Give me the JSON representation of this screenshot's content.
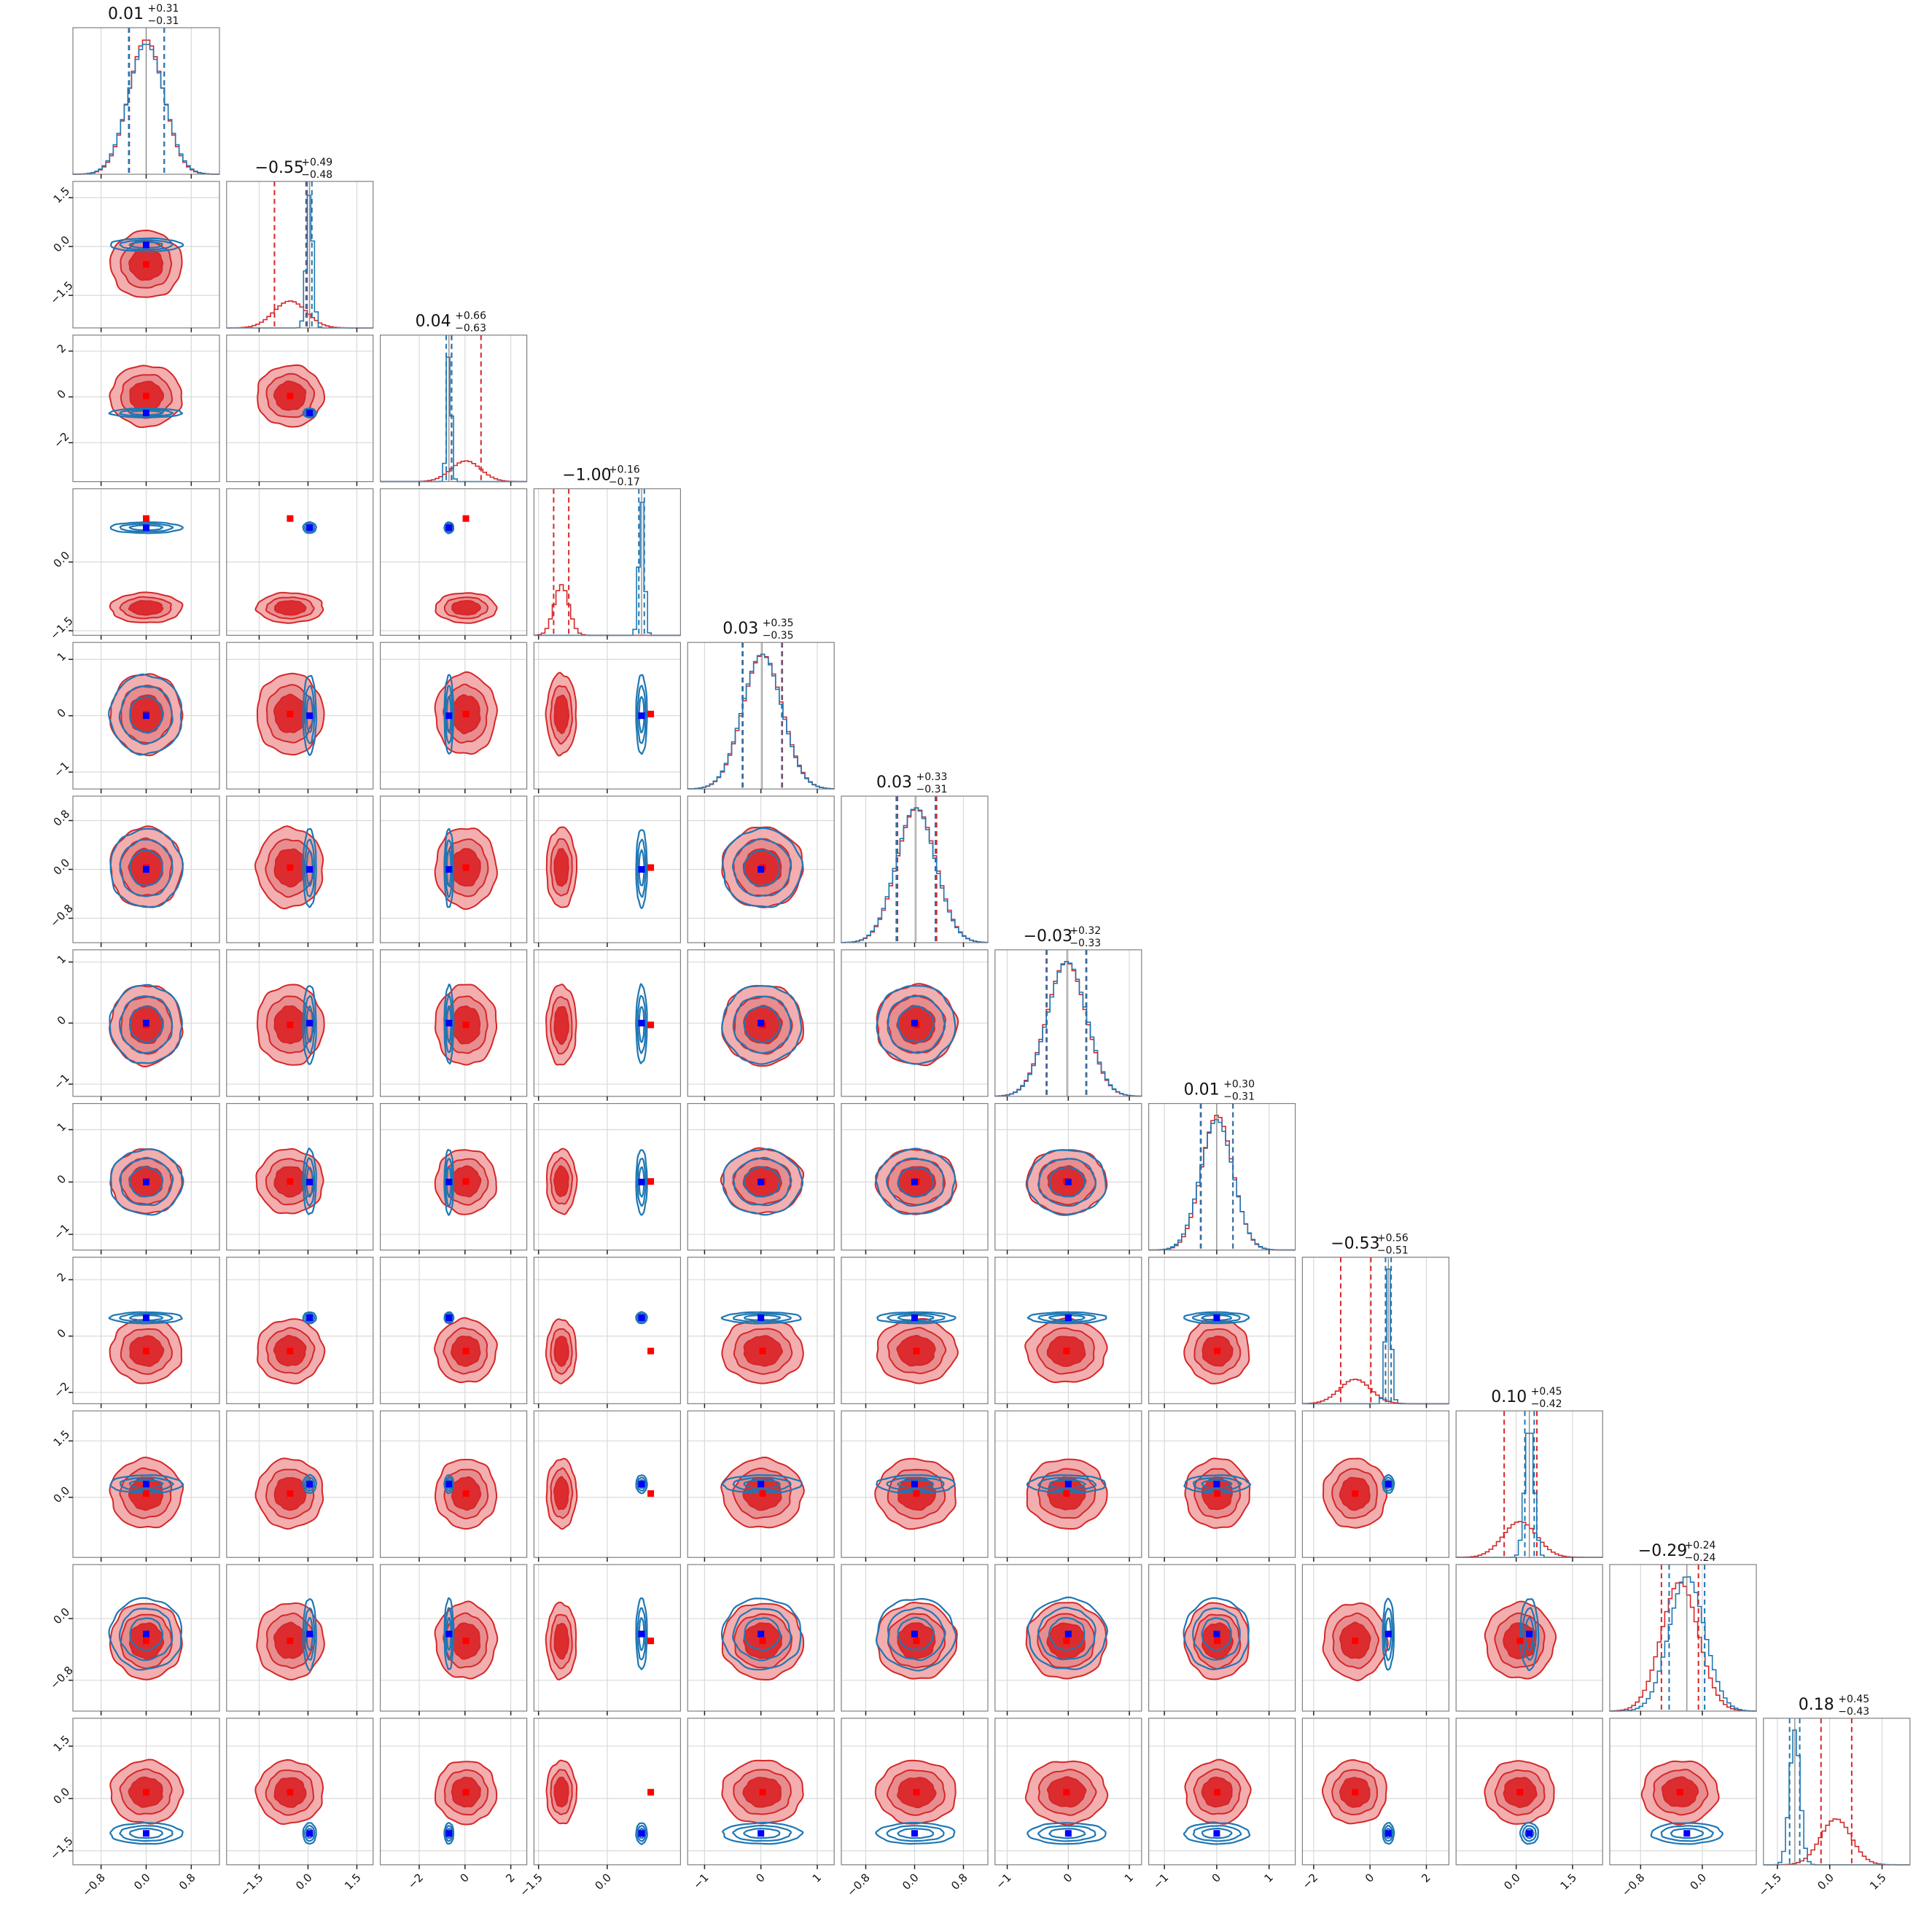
{
  "figure": {
    "type": "corner-plot",
    "grid": true,
    "colors": {
      "blue_series": "#1f77b4",
      "red_series": "#d62728",
      "blue_marker": "#0000ff",
      "red_marker": "#ff0000",
      "grid": "#d9d9d9",
      "frame": "#808080"
    }
  },
  "chart_data": {
    "type": "corner",
    "n_params": 12,
    "series": [
      {
        "color": "#1f77b4"
      },
      {
        "color": "#d62728"
      }
    ],
    "params": [
      {
        "title": "0.01",
        "plus": "+0.31",
        "minus": "−0.31",
        "ticks": [
          -0.8,
          0.0,
          0.8
        ],
        "tick_labels": [
          "−0.8",
          "0.0",
          "0.8"
        ],
        "range": [
          -1.3,
          1.3
        ],
        "blue": {
          "mu": 0.0,
          "sd": 0.32,
          "cred": [
            -0.31,
            0.32
          ]
        },
        "red": {
          "mu": 0.0,
          "sd": 0.31,
          "cred": [
            -0.3,
            0.32
          ]
        },
        "blue_mark": 0.0,
        "red_mark": 0.0
      },
      {
        "title": "−0.55",
        "plus": "+0.49",
        "minus": "−0.48",
        "ticks": [
          -1.5,
          0.0,
          1.5
        ],
        "tick_labels": [
          "−1.5",
          "0.0",
          "1.5"
        ],
        "range": [
          -2.5,
          2.0
        ],
        "blue": {
          "mu": 0.05,
          "sd": 0.1,
          "cred": [
            -0.03,
            0.12
          ]
        },
        "red": {
          "mu": -0.55,
          "sd": 0.5,
          "cred": [
            -1.03,
            -0.06
          ]
        },
        "blue_mark": 0.05,
        "red_mark": -0.55
      },
      {
        "title": "0.04",
        "plus": "+0.66",
        "minus": "−0.63",
        "ticks": [
          -2.0,
          0.0,
          2.0
        ],
        "tick_labels": [
          "−2",
          "0",
          "2"
        ],
        "range": [
          -3.7,
          2.7
        ],
        "blue": {
          "mu": -0.7,
          "sd": 0.1,
          "cred": [
            -0.82,
            -0.58
          ]
        },
        "red": {
          "mu": 0.04,
          "sd": 0.65,
          "cred": [
            -0.59,
            0.7
          ]
        },
        "blue_mark": -0.7,
        "red_mark": 0.04
      },
      {
        "title": "−1.00",
        "plus": "+0.16",
        "minus": "−0.17",
        "ticks": [
          -1.5,
          0.0
        ],
        "tick_labels": [
          "−1.5",
          "0.0"
        ],
        "range": [
          -1.6,
          1.6
        ],
        "blue": {
          "mu": 0.75,
          "sd": 0.06,
          "cred": [
            0.69,
            0.81
          ]
        },
        "red": {
          "mu": -1.0,
          "sd": 0.16,
          "cred": [
            -1.17,
            -0.84
          ]
        },
        "blue_mark": 0.75,
        "red_mark": 0.95
      },
      {
        "title": "0.03",
        "plus": "+0.35",
        "minus": "−0.35",
        "ticks": [
          -1.0,
          0.0,
          1.0
        ],
        "tick_labels": [
          "−1",
          "0",
          "1"
        ],
        "range": [
          -1.3,
          1.3
        ],
        "blue": {
          "mu": 0.02,
          "sd": 0.35,
          "cred": [
            -0.33,
            0.37
          ]
        },
        "red": {
          "mu": 0.03,
          "sd": 0.35,
          "cred": [
            -0.32,
            0.38
          ]
        },
        "blue_mark": 0.0,
        "red_mark": 0.03
      },
      {
        "title": "0.03",
        "plus": "+0.33",
        "minus": "−0.31",
        "ticks": [
          -0.8,
          0.0,
          0.8
        ],
        "tick_labels": [
          "−0.8",
          "0.0",
          "0.8"
        ],
        "range": [
          -1.2,
          1.2
        ],
        "blue": {
          "mu": 0.02,
          "sd": 0.32,
          "cred": [
            -0.3,
            0.34
          ]
        },
        "red": {
          "mu": 0.03,
          "sd": 0.32,
          "cred": [
            -0.28,
            0.36
          ]
        },
        "blue_mark": 0.0,
        "red_mark": 0.03
      },
      {
        "title": "−0.03",
        "plus": "+0.32",
        "minus": "−0.33",
        "ticks": [
          -1.0,
          0.0,
          1.0
        ],
        "tick_labels": [
          "−1",
          "0",
          "1"
        ],
        "range": [
          -1.2,
          1.2
        ],
        "blue": {
          "mu": -0.02,
          "sd": 0.32,
          "cred": [
            -0.35,
            0.3
          ]
        },
        "red": {
          "mu": -0.03,
          "sd": 0.32,
          "cred": [
            -0.36,
            0.29
          ]
        },
        "blue_mark": 0.0,
        "red_mark": -0.03
      },
      {
        "title": "0.01",
        "plus": "+0.30",
        "minus": "−0.31",
        "ticks": [
          -1.0,
          0.0,
          1.0
        ],
        "tick_labels": [
          "−1",
          "0",
          "1"
        ],
        "range": [
          -1.3,
          1.5
        ],
        "blue": {
          "mu": 0.0,
          "sd": 0.31,
          "cred": [
            -0.31,
            0.31
          ]
        },
        "red": {
          "mu": 0.01,
          "sd": 0.3,
          "cred": [
            -0.3,
            0.31
          ]
        },
        "blue_mark": 0.0,
        "red_mark": 0.01
      },
      {
        "title": "−0.53",
        "plus": "+0.56",
        "minus": "−0.51",
        "ticks": [
          -2.0,
          0.0,
          2.0
        ],
        "tick_labels": [
          "−2",
          "0",
          "2"
        ],
        "range": [
          -2.4,
          2.8
        ],
        "blue": {
          "mu": 0.65,
          "sd": 0.1,
          "cred": [
            0.55,
            0.75
          ]
        },
        "red": {
          "mu": -0.53,
          "sd": 0.55,
          "cred": [
            -1.04,
            0.03
          ]
        },
        "blue_mark": 0.65,
        "red_mark": -0.53
      },
      {
        "title": "0.10",
        "plus": "+0.45",
        "minus": "−0.42",
        "ticks": [
          0.0,
          1.5
        ],
        "tick_labels": [
          "0.0",
          "1.5"
        ],
        "range": [
          -1.6,
          2.3
        ],
        "blue": {
          "mu": 0.35,
          "sd": 0.12,
          "cred": [
            0.23,
            0.48
          ]
        },
        "red": {
          "mu": 0.1,
          "sd": 0.45,
          "cred": [
            -0.32,
            0.55
          ]
        },
        "blue_mark": 0.35,
        "red_mark": 0.1
      },
      {
        "title": "−0.29",
        "plus": "+0.24",
        "minus": "−0.24",
        "ticks": [
          -0.8,
          0.0
        ],
        "tick_labels": [
          "−0.8",
          "0.0"
        ],
        "range": [
          -1.2,
          0.7
        ],
        "blue": {
          "mu": -0.2,
          "sd": 0.23,
          "cred": [
            -0.43,
            0.03
          ]
        },
        "red": {
          "mu": -0.29,
          "sd": 0.24,
          "cred": [
            -0.53,
            -0.05
          ]
        },
        "blue_mark": -0.2,
        "red_mark": -0.29
      },
      {
        "title": "0.18",
        "plus": "+0.45",
        "minus": "−0.43",
        "ticks": [
          -1.5,
          0.0,
          1.5
        ],
        "tick_labels": [
          "−1.5",
          "0.0",
          "1.5"
        ],
        "range": [
          -1.9,
          2.3
        ],
        "blue": {
          "mu": -1.0,
          "sd": 0.15,
          "cred": [
            -1.15,
            -0.86
          ]
        },
        "red": {
          "mu": 0.18,
          "sd": 0.44,
          "cred": [
            -0.25,
            0.63
          ]
        },
        "blue_mark": -1.0,
        "red_mark": 0.18
      }
    ]
  }
}
